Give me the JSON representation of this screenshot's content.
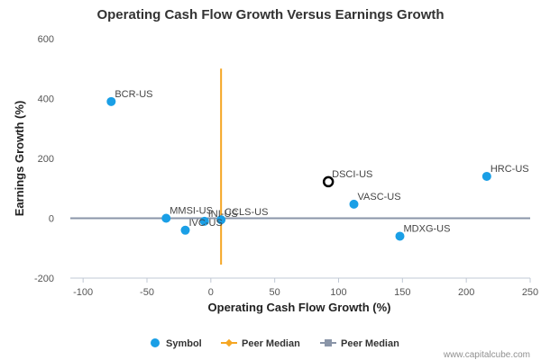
{
  "chart_data": {
    "type": "scatter",
    "title": "Operating Cash Flow Growth Versus Earnings Growth",
    "xlabel": "Operating Cash Flow Growth (%)",
    "ylabel": "Earnings Growth (%)",
    "xlim": [
      -110,
      250
    ],
    "ylim": [
      -200,
      600
    ],
    "xticks": [
      -100,
      -50,
      0,
      50,
      100,
      150,
      200,
      250
    ],
    "yticks": [
      -200,
      0,
      200,
      400,
      600
    ],
    "grid": false,
    "legend_placement": "bottom-center",
    "series": [
      {
        "name": "Symbol",
        "color": "#1a9fe6",
        "points": [
          {
            "label": "BCR-US",
            "x": -78,
            "y": 390
          },
          {
            "label": "MMSI-US",
            "x": -35,
            "y": 0
          },
          {
            "label": "IVC-US",
            "x": -20,
            "y": -40
          },
          {
            "label": "INI-US",
            "x": -5,
            "y": -10
          },
          {
            "label": "CCLS-US",
            "x": 8,
            "y": -5
          },
          {
            "label": "VASC-US",
            "x": 112,
            "y": 47
          },
          {
            "label": "MDXG-US",
            "x": 148,
            "y": -60
          },
          {
            "label": "HRC-US",
            "x": 216,
            "y": 140
          }
        ]
      },
      {
        "name": "DSCI-US",
        "highlight": true,
        "color": "#000000",
        "points": [
          {
            "label": "DSCI-US",
            "x": 92,
            "y": 122
          }
        ]
      }
    ],
    "peer_median_lines": [
      {
        "name": "Peer Median",
        "orientation": "vertical",
        "value": 8,
        "from": -155,
        "to": 500,
        "color": "#f5a623"
      },
      {
        "name": "Peer Median",
        "orientation": "horizontal",
        "value": 0,
        "color": "#8a95a8"
      }
    ]
  },
  "legend": [
    {
      "label": "Symbol",
      "marker": "circle",
      "color": "#1a9fe6"
    },
    {
      "label": "Peer Median",
      "marker": "diamond-line",
      "color": "#f5a623"
    },
    {
      "label": "Peer Median",
      "marker": "square-line",
      "color": "#8a95a8"
    }
  ],
  "credit": "www.capitalcube.com"
}
